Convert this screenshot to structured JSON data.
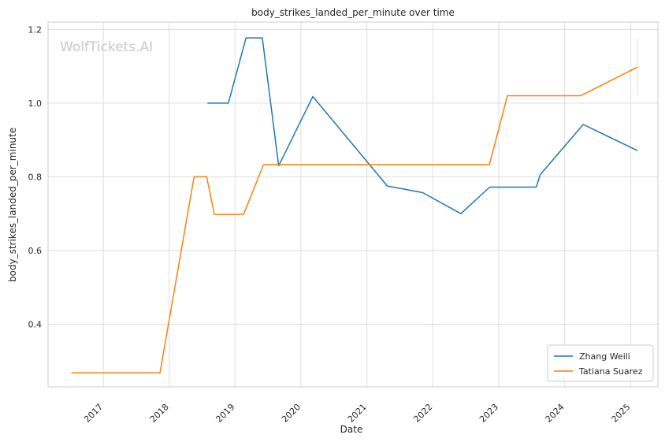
{
  "chart_data": {
    "type": "line",
    "title": "body_strikes_landed_per_minute over time",
    "xlabel": "Date",
    "ylabel": "body_strikes_landed_per_minute",
    "x_axis": {
      "kind": "date",
      "range": [
        "2016-03-01",
        "2025-06-01"
      ],
      "ticks": [
        "2017",
        "2018",
        "2019",
        "2020",
        "2021",
        "2022",
        "2023",
        "2024",
        "2025"
      ]
    },
    "y_axis": {
      "range": [
        0.23,
        1.22
      ],
      "ticks": [
        0.4,
        0.6,
        0.8,
        1.0,
        1.2
      ],
      "tick_labels": [
        "0.4",
        "0.6",
        "0.8",
        "1.0",
        "1.2"
      ]
    },
    "grid": true,
    "legend_position": "bottom-right",
    "watermark": "WolfTickets.AI",
    "series": [
      {
        "name": "Zhang Weili",
        "color": "#1f77b4",
        "points": [
          [
            "2018-08-01",
            1.0
          ],
          [
            "2018-11-25",
            1.0
          ],
          [
            "2019-03-03",
            1.177
          ],
          [
            "2019-06-01",
            1.177
          ],
          [
            "2019-08-31",
            0.83
          ],
          [
            "2020-03-07",
            1.018
          ],
          [
            "2021-04-24",
            0.775
          ],
          [
            "2021-11-06",
            0.757
          ],
          [
            "2022-06-05",
            0.7
          ],
          [
            "2022-11-12",
            0.772
          ],
          [
            "2023-07-28",
            0.772
          ],
          [
            "2023-08-19",
            0.806
          ],
          [
            "2024-04-13",
            0.942
          ],
          [
            "2025-02-08",
            0.871
          ]
        ]
      },
      {
        "name": "Tatiana Suarez",
        "color": "#ff7f0e",
        "points": [
          [
            "2016-07-08",
            0.268
          ],
          [
            "2017-11-11",
            0.268
          ],
          [
            "2018-05-19",
            0.8
          ],
          [
            "2018-07-28",
            0.8
          ],
          [
            "2018-09-08",
            0.698
          ],
          [
            "2019-02-17",
            0.698
          ],
          [
            "2019-06-08",
            0.833
          ],
          [
            "2022-11-10",
            0.833
          ],
          [
            "2023-02-18",
            1.02
          ],
          [
            "2024-03-30",
            1.02
          ],
          [
            "2025-02-08",
            1.098
          ]
        ]
      }
    ],
    "faint_vertical_line": {
      "color": "#f5d9c2",
      "x": "2025-02-08",
      "y_range": [
        1.02,
        1.175
      ]
    }
  }
}
